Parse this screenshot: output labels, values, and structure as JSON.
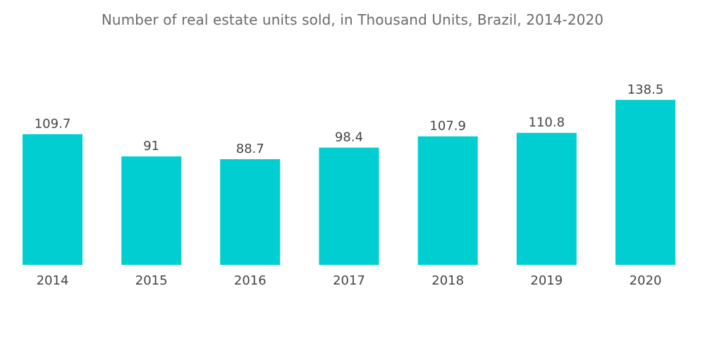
{
  "chart_data": {
    "type": "bar",
    "title": "Number of real estate units sold, in Thousand Units, Brazil, 2014-2020",
    "xlabel": "",
    "ylabel": "",
    "categories": [
      "2014",
      "2015",
      "2016",
      "2017",
      "2018",
      "2019",
      "2020"
    ],
    "values": [
      109.7,
      91,
      88.7,
      98.4,
      107.9,
      110.8,
      138.5
    ],
    "value_labels": [
      "109.7",
      "91",
      "88.7",
      "98.4",
      "107.9",
      "110.8",
      "138.5"
    ],
    "ylim": [
      0,
      140
    ],
    "grid": false,
    "legend": "none",
    "bar_color": "#00CED1"
  }
}
